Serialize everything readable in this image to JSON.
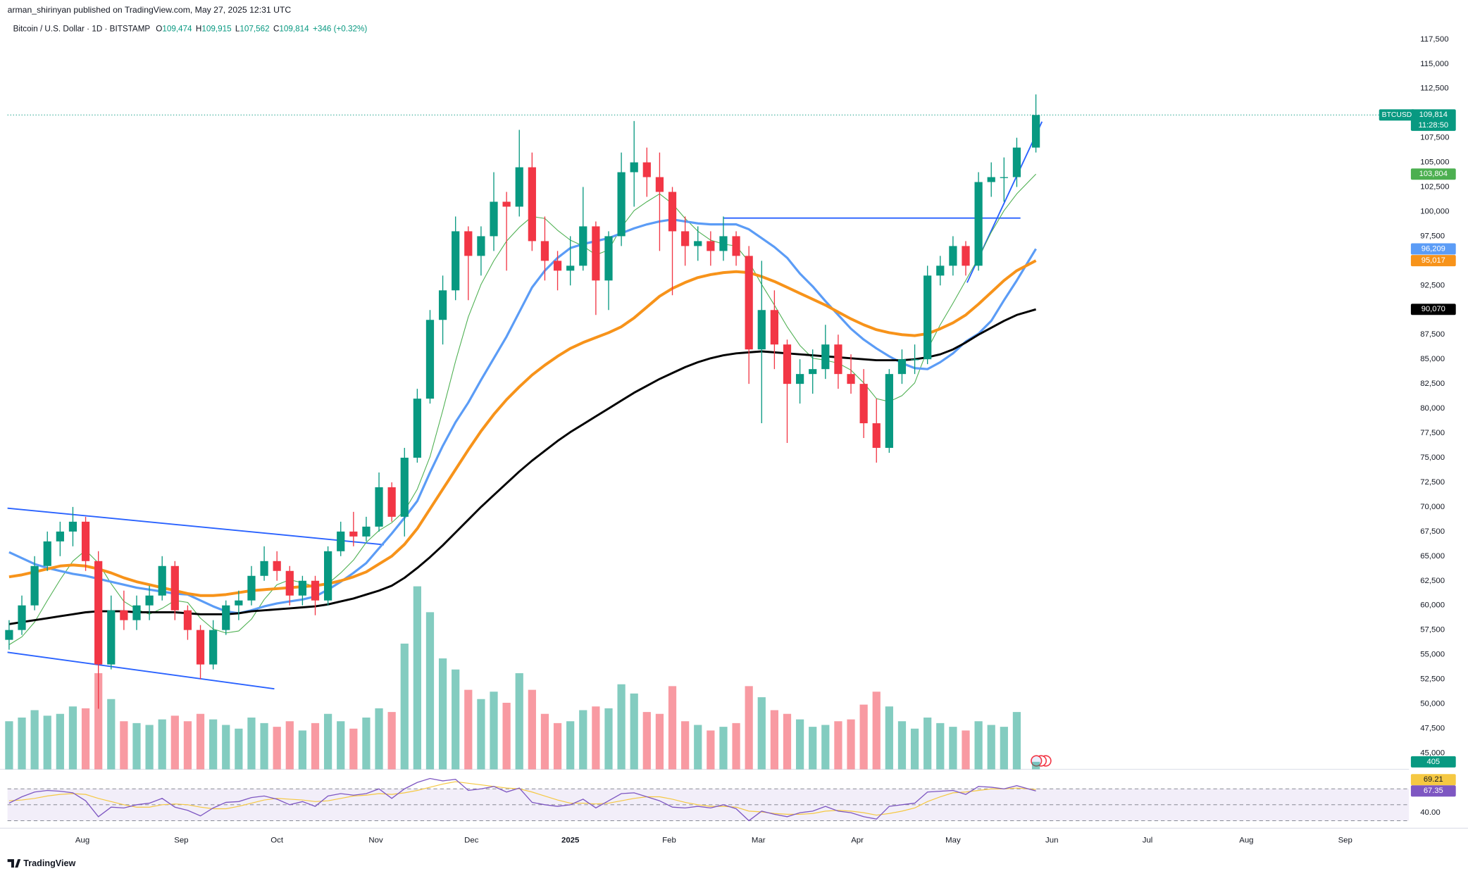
{
  "chart_data": {
    "type": "candlestick",
    "attribution": "arman_shirinyan published on TradingView.com, May 27, 2025 12:31 UTC",
    "title": "Bitcoin / U.S. Dollar · 1D · BITSTAMP",
    "ohlc_legend": [
      {
        "key": "O",
        "text": "109,474"
      },
      {
        "key": "H",
        "text": "109,915"
      },
      {
        "key": "L",
        "text": "107,562"
      },
      {
        "key": "C",
        "text": "109,814"
      }
    ],
    "change_text": "+346 (+0.32%)",
    "symbol_tag": "BTCUSD",
    "last_price_label": "109,814",
    "countdown": "11:28:50",
    "branding": "TradingView",
    "up_color": "#089981",
    "down_color": "#f23645",
    "grid": false,
    "xlim": [
      -176.5,
      263
    ],
    "xticks": [
      {
        "value": -153,
        "label": "Aug"
      },
      {
        "value": -122,
        "label": "Sep"
      },
      {
        "value": -92,
        "label": "Oct"
      },
      {
        "value": -61,
        "label": "Nov"
      },
      {
        "value": -31,
        "label": "Dec"
      },
      {
        "value": 0,
        "label": "2025"
      },
      {
        "value": 31,
        "label": "Feb"
      },
      {
        "value": 59,
        "label": "Mar"
      },
      {
        "value": 90,
        "label": "Apr"
      },
      {
        "value": 120,
        "label": "May"
      },
      {
        "value": 151,
        "label": "Jun"
      },
      {
        "value": 181,
        "label": "Jul"
      },
      {
        "value": 212,
        "label": "Aug"
      },
      {
        "value": 243,
        "label": "Sep"
      }
    ],
    "ylim": [
      43350,
      119590
    ],
    "yticks": [
      {
        "value": 45000,
        "label": "45,000"
      },
      {
        "value": 47500,
        "label": "47,500"
      },
      {
        "value": 50000,
        "label": "50,000"
      },
      {
        "value": 52500,
        "label": "52,500"
      },
      {
        "value": 55000,
        "label": "55,000"
      },
      {
        "value": 57500,
        "label": "57,500"
      },
      {
        "value": 60000,
        "label": "60,000"
      },
      {
        "value": 62500,
        "label": "62,500"
      },
      {
        "value": 65000,
        "label": "65,000"
      },
      {
        "value": 67500,
        "label": "67,500"
      },
      {
        "value": 70000,
        "label": "70,000"
      },
      {
        "value": 72500,
        "label": "72,500"
      },
      {
        "value": 75000,
        "label": "75,000"
      },
      {
        "value": 77500,
        "label": "77,500"
      },
      {
        "value": 80000,
        "label": "80,000"
      },
      {
        "value": 82500,
        "label": "82,500"
      },
      {
        "value": 85000,
        "label": "85,000"
      },
      {
        "value": 87500,
        "label": "87,500"
      },
      {
        "value": 90000,
        "label": "90,000"
      },
      {
        "value": 92500,
        "label": "92,500"
      },
      {
        "value": 95000,
        "label": "95,000"
      },
      {
        "value": 97500,
        "label": "97,500"
      },
      {
        "value": 100000,
        "label": "100,000"
      },
      {
        "value": 102500,
        "label": "102,500"
      },
      {
        "value": 105000,
        "label": "105,000"
      },
      {
        "value": 107500,
        "label": "107,500"
      },
      {
        "value": 110000,
        "label": "110,000"
      },
      {
        "value": 112500,
        "label": "112,500"
      },
      {
        "value": 115000,
        "label": "115,000"
      },
      {
        "value": 117500,
        "label": "117,500"
      }
    ],
    "x": [
      -176,
      -172,
      -168,
      -164,
      -160,
      -156,
      -152,
      -148,
      -144,
      -140,
      -136,
      -132,
      -128,
      -124,
      -120,
      -116,
      -112,
      -108,
      -104,
      -100,
      -96,
      -92,
      -88,
      -84,
      -80,
      -76,
      -72,
      -68,
      -64,
      -60,
      -56,
      -52,
      -48,
      -44,
      -40,
      -36,
      -32,
      -28,
      -24,
      -20,
      -16,
      -12,
      -8,
      -4,
      0,
      4,
      8,
      12,
      16,
      20,
      24,
      28,
      32,
      36,
      40,
      44,
      48,
      52,
      56,
      60,
      64,
      68,
      72,
      76,
      80,
      84,
      88,
      92,
      96,
      100,
      104,
      108,
      112,
      116,
      120,
      124,
      128,
      132,
      136,
      140,
      146
    ],
    "open": [
      56500,
      57500,
      60000,
      64000,
      66500,
      67500,
      68500,
      64500,
      54000,
      59500,
      58500,
      60000,
      61000,
      64000,
      59500,
      57500,
      54000,
      57500,
      60000,
      60500,
      63000,
      64500,
      63500,
      61000,
      62500,
      60500,
      65500,
      67500,
      67000,
      68000,
      72000,
      69000,
      75000,
      81000,
      89000,
      92000,
      98000,
      95500,
      97500,
      101000,
      100500,
      104500,
      97000,
      95000,
      94000,
      94500,
      98500,
      93000,
      97500,
      104000,
      105000,
      103500,
      102000,
      98000,
      96500,
      97000,
      96000,
      97500,
      95500,
      86000,
      90000,
      86500,
      82500,
      83500,
      84000,
      86500,
      83500,
      82500,
      78500,
      76000,
      83500,
      85000,
      85000,
      93500,
      94500,
      96500,
      94500,
      103000,
      103500,
      103500,
      106500
    ],
    "high": [
      58500,
      61000,
      65000,
      67500,
      68500,
      70000,
      69000,
      65500,
      61000,
      61500,
      61000,
      62000,
      65000,
      64500,
      60000,
      58000,
      58500,
      60500,
      61500,
      64000,
      66000,
      65500,
      64000,
      63000,
      63000,
      66000,
      68500,
      69500,
      69000,
      73500,
      72500,
      76000,
      82000,
      90000,
      93500,
      99500,
      98500,
      98500,
      104000,
      102000,
      108300,
      106000,
      99500,
      96000,
      97500,
      102500,
      99000,
      98000,
      106000,
      109200,
      106500,
      106000,
      102500,
      99500,
      98500,
      98000,
      99500,
      98000,
      96500,
      95000,
      92000,
      87000,
      85000,
      86000,
      88500,
      87500,
      85500,
      84000,
      81000,
      84000,
      86000,
      86500,
      94500,
      95500,
      97500,
      97000,
      104000,
      105000,
      105500,
      107500,
      111900
    ],
    "low": [
      55500,
      57000,
      59500,
      63500,
      65000,
      66000,
      63500,
      49500,
      53500,
      57500,
      57500,
      58500,
      60500,
      58500,
      56500,
      52500,
      53500,
      57000,
      58500,
      60000,
      62500,
      62500,
      60000,
      60000,
      59000,
      60000,
      65000,
      66000,
      66500,
      67500,
      68500,
      67000,
      74500,
      80500,
      86500,
      91000,
      91000,
      93500,
      96000,
      94000,
      99500,
      96000,
      93000,
      92000,
      92500,
      94000,
      89500,
      90000,
      96500,
      100500,
      101500,
      96000,
      91500,
      94500,
      95000,
      94500,
      95000,
      94500,
      82500,
      78500,
      84000,
      76500,
      80500,
      81500,
      83000,
      82000,
      81500,
      77000,
      74500,
      75500,
      82500,
      83500,
      84500,
      92500,
      93500,
      93500,
      94000,
      101500,
      101000,
      102500,
      106000
    ],
    "close": [
      57500,
      60000,
      64000,
      66500,
      67500,
      68500,
      64500,
      54000,
      59500,
      58500,
      60000,
      61000,
      64000,
      59500,
      57500,
      54000,
      57500,
      60000,
      60500,
      63000,
      64500,
      63500,
      61000,
      62500,
      60500,
      65500,
      67500,
      67000,
      68000,
      72000,
      69000,
      75000,
      81000,
      89000,
      92000,
      98000,
      95500,
      97500,
      101000,
      100500,
      104500,
      97000,
      95000,
      94000,
      94500,
      98500,
      93000,
      97500,
      104000,
      105000,
      103500,
      102000,
      98000,
      96500,
      97000,
      96000,
      97500,
      95500,
      86000,
      90000,
      86500,
      82500,
      83500,
      84000,
      86500,
      83500,
      82500,
      78500,
      76000,
      83500,
      85000,
      85000,
      93500,
      94500,
      96500,
      94500,
      103000,
      103500,
      103500,
      106500,
      109814
    ],
    "series": [
      {
        "color": "#4caf50",
        "width": 0.8,
        "last_label": "103,804",
        "values": [
          56000,
          56800,
          58300,
          60500,
          62600,
          64500,
          65600,
          64300,
          62200,
          60400,
          59600,
          59100,
          59700,
          60500,
          60300,
          58700,
          57600,
          57200,
          57400,
          58600,
          60600,
          62100,
          62600,
          62300,
          61900,
          62200,
          63300,
          64600,
          66400,
          67600,
          68400,
          69600,
          71800,
          75100,
          79800,
          84800,
          89300,
          92600,
          95000,
          97000,
          98400,
          99500,
          99300,
          98100,
          97100,
          96500,
          95600,
          96100,
          98400,
          100100,
          101000,
          101800,
          100800,
          99300,
          98000,
          97100,
          96700,
          96500,
          94900,
          92600,
          90500,
          88300,
          86400,
          85100,
          84900,
          84600,
          83900,
          82600,
          81000,
          80700,
          81300,
          82600,
          86000,
          88500,
          90700,
          93000,
          95300,
          97900,
          100100,
          101800,
          103804
        ]
      },
      {
        "color": "#5b9cf6",
        "width": 2.4,
        "last_label": "96,209",
        "values": [
          65400,
          64800,
          64200,
          63800,
          63500,
          63200,
          63000,
          62700,
          62400,
          62100,
          61800,
          61600,
          61400,
          61200,
          61100,
          60500,
          59900,
          59400,
          59200,
          59500,
          59900,
          60200,
          60400,
          60600,
          60900,
          61600,
          62400,
          63300,
          64300,
          65800,
          67300,
          68900,
          70600,
          73500,
          76200,
          78600,
          80600,
          82900,
          85100,
          87300,
          89800,
          92300,
          94000,
          95300,
          96300,
          96700,
          97000,
          97300,
          97800,
          98300,
          98700,
          99000,
          99200,
          99000,
          98800,
          98700,
          98700,
          98700,
          98200,
          97300,
          96400,
          95300,
          93700,
          92400,
          90900,
          89500,
          88100,
          87000,
          86100,
          85300,
          84600,
          84100,
          84000,
          84700,
          85600,
          86800,
          87600,
          88900,
          91000,
          93000,
          96209
        ]
      },
      {
        "color": "#f7931a",
        "width": 3,
        "last_label": "95,017",
        "values": [
          62900,
          63100,
          63400,
          63700,
          64000,
          64100,
          64000,
          63700,
          63300,
          62800,
          62400,
          62100,
          61800,
          61500,
          61200,
          61000,
          61000,
          61100,
          61300,
          61500,
          61600,
          61700,
          61800,
          61900,
          62000,
          62200,
          62500,
          62900,
          63400,
          64200,
          65000,
          66200,
          67800,
          69800,
          71800,
          73800,
          75800,
          77700,
          79400,
          80900,
          82200,
          83400,
          84400,
          85300,
          86100,
          86700,
          87200,
          87700,
          88300,
          89200,
          90300,
          91400,
          92200,
          92800,
          93300,
          93600,
          93800,
          93900,
          93800,
          93400,
          92900,
          92300,
          91700,
          91100,
          90500,
          89800,
          89100,
          88500,
          88000,
          87700,
          87500,
          87400,
          87600,
          88100,
          88700,
          89500,
          90600,
          91800,
          93000,
          94000,
          95017
        ]
      },
      {
        "color": "#000000",
        "width": 2.2,
        "last_label": "90,070",
        "values": [
          58100,
          58300,
          58500,
          58700,
          58900,
          59100,
          59300,
          59400,
          59400,
          59400,
          59300,
          59300,
          59300,
          59300,
          59200,
          59100,
          59100,
          59100,
          59200,
          59400,
          59500,
          59600,
          59700,
          59800,
          59900,
          60100,
          60400,
          60700,
          61100,
          61500,
          62000,
          62800,
          63800,
          64900,
          66100,
          67400,
          68700,
          70000,
          71200,
          72400,
          73600,
          74700,
          75700,
          76700,
          77600,
          78400,
          79200,
          80000,
          80800,
          81600,
          82300,
          83000,
          83600,
          84200,
          84700,
          85100,
          85400,
          85600,
          85700,
          85800,
          85700,
          85600,
          85500,
          85400,
          85300,
          85200,
          85100,
          85000,
          84900,
          84900,
          84900,
          85000,
          85200,
          85500,
          86000,
          86700,
          87500,
          88200,
          88900,
          89500,
          90070
        ]
      }
    ],
    "volume": {
      "ylim": [
        0,
        16000
      ],
      "values": [
        2600,
        2800,
        3200,
        2900,
        3000,
        3400,
        3300,
        5200,
        3800,
        2600,
        2500,
        2400,
        2700,
        2900,
        2600,
        3000,
        2700,
        2400,
        2200,
        2800,
        2500,
        2300,
        2600,
        2100,
        2500,
        3000,
        2600,
        2200,
        2800,
        3300,
        3100,
        6800,
        9900,
        8500,
        6000,
        5400,
        4300,
        3800,
        4200,
        3600,
        5200,
        4300,
        3000,
        2500,
        2600,
        3200,
        3400,
        3300,
        4600,
        4100,
        3100,
        3000,
        4500,
        2600,
        2400,
        2100,
        2300,
        2500,
        4500,
        3900,
        3200,
        3000,
        2700,
        2300,
        2400,
        2600,
        2700,
        3500,
        4200,
        3400,
        2600,
        2200,
        2800,
        2500,
        2300,
        2100,
        2600,
        2400,
        2300,
        3100,
        405
      ]
    },
    "rsi": {
      "ylim": [
        24,
        91
      ],
      "yticks": [
        {
          "value": 40,
          "label": "40.00"
        }
      ],
      "levels": [
        30,
        50,
        70
      ],
      "color": "#7e57c2",
      "values": [
        52,
        60,
        66,
        68,
        67,
        65,
        55,
        35,
        47,
        46,
        50,
        52,
        58,
        47,
        43,
        36,
        46,
        53,
        54,
        59,
        61,
        57,
        50,
        54,
        48,
        61,
        64,
        62,
        64,
        70,
        58,
        70,
        78,
        83,
        80,
        82,
        68,
        70,
        73,
        66,
        71,
        53,
        50,
        48,
        50,
        57,
        46,
        55,
        64,
        65,
        60,
        55,
        47,
        46,
        48,
        46,
        50,
        45,
        30,
        42,
        38,
        35,
        40,
        42,
        48,
        42,
        40,
        35,
        32,
        48,
        50,
        52,
        66,
        67,
        68,
        63,
        73,
        72,
        70,
        74,
        67.35
      ],
      "ma": {
        "color": "#f5c842",
        "values": [
          55,
          56,
          58,
          61,
          63,
          64,
          63,
          58,
          54,
          50,
          47,
          47,
          50,
          51,
          50,
          47,
          45,
          45,
          48,
          52,
          56,
          58,
          57,
          56,
          54,
          55,
          58,
          61,
          62,
          64,
          63,
          65,
          68,
          72,
          76,
          79,
          77,
          75,
          73,
          71,
          70,
          66,
          61,
          56,
          52,
          52,
          51,
          52,
          55,
          58,
          60,
          60,
          57,
          53,
          50,
          48,
          48,
          47,
          42,
          41,
          39,
          38,
          38,
          39,
          42,
          43,
          42,
          40,
          37,
          39,
          42,
          46,
          54,
          60,
          65,
          66,
          68,
          70,
          70,
          71,
          69.21
        ]
      }
    }
  }
}
